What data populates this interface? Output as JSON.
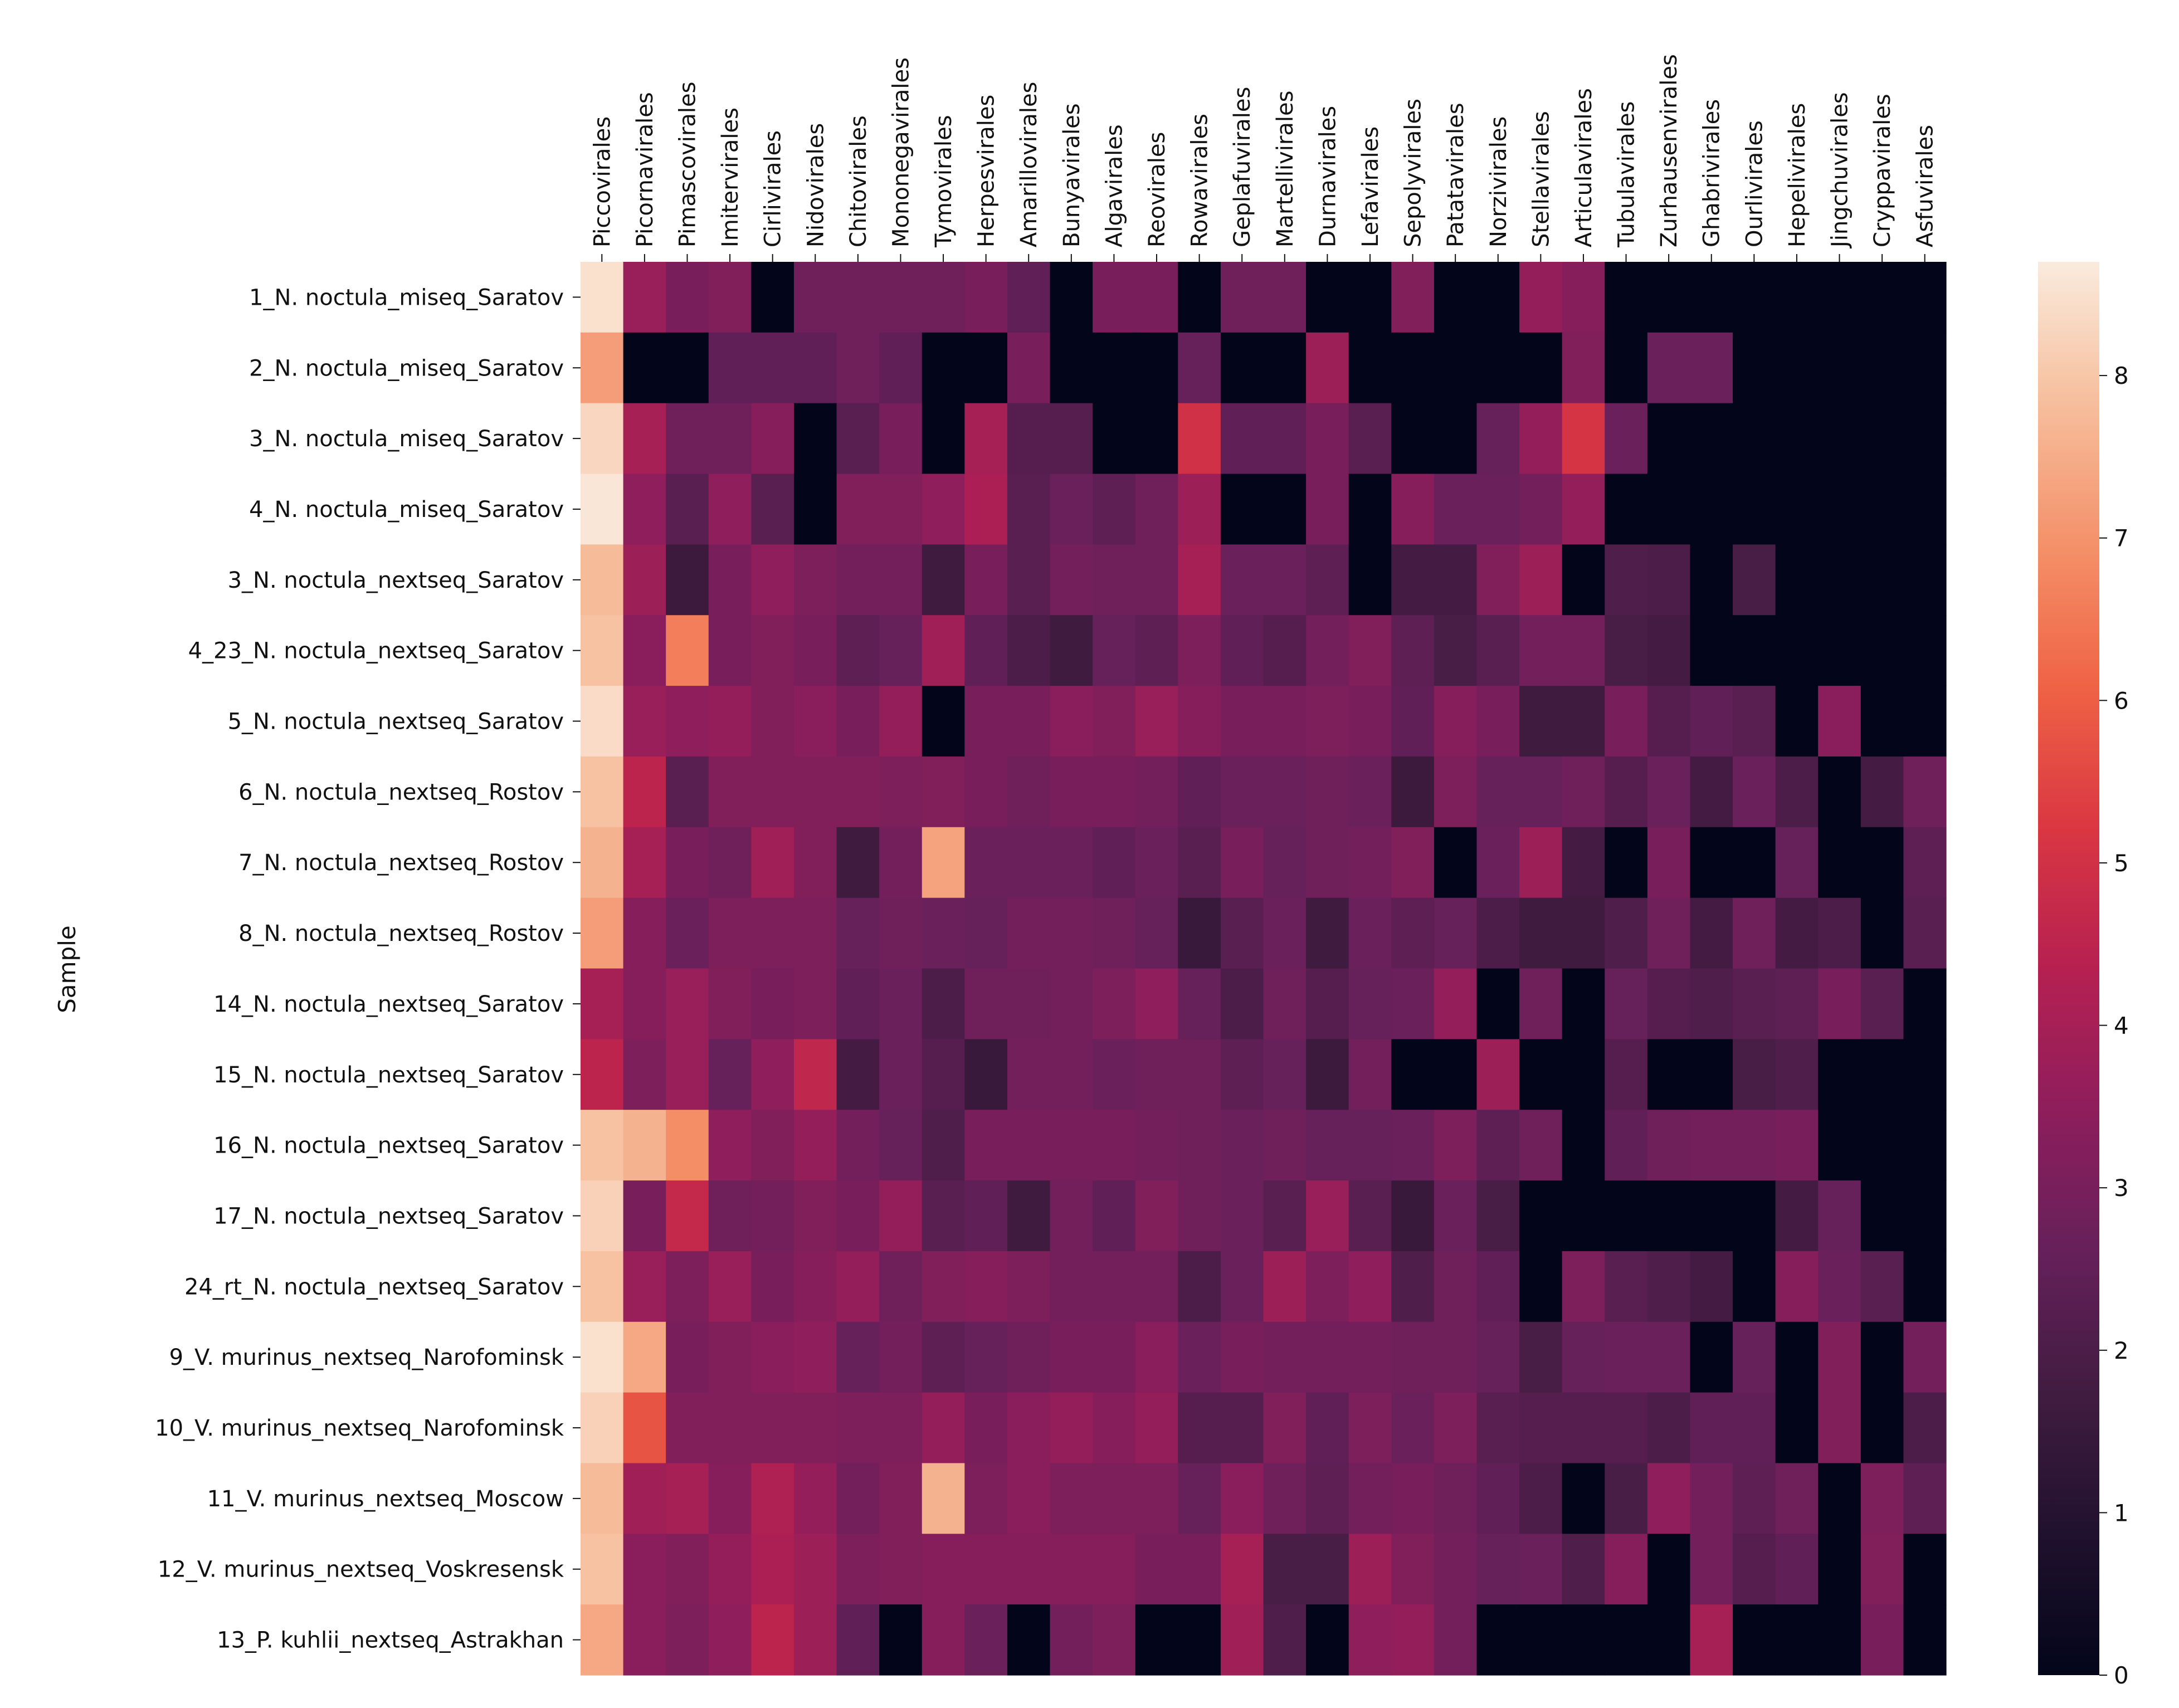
{
  "chart_data": {
    "type": "heatmap",
    "ylabel": "Sample",
    "xlabel": "",
    "x_tick_position": "top",
    "colormap": "rocket",
    "colorbar": {
      "min": 0,
      "max": 8.7,
      "ticks": [
        0,
        1,
        2,
        3,
        4,
        5,
        6,
        7,
        8
      ],
      "placement": "right"
    },
    "columns": [
      "Piccovirales",
      "Picornavirales",
      "Pimascovirales",
      "Imitervirales",
      "Cirlivirales",
      "Nidovirales",
      "Chitovirales",
      "Mononegavirales",
      "Tymovirales",
      "Herpesvirales",
      "Amarillovirales",
      "Bunyavirales",
      "Algavirales",
      "Reovirales",
      "Rowavirales",
      "Geplafuvirales",
      "Martellivirales",
      "Durnavirales",
      "Lefavirales",
      "Sepolyvirales",
      "Patatavirales",
      "Norzivirales",
      "Stellavirales",
      "Articulavirales",
      "Tubulavirales",
      "Zurhausenvirales",
      "Ghabrivirales",
      "Ourlivirales",
      "Hepelivirales",
      "Jingchuvirales",
      "Cryppavirales",
      "Asfuvirales"
    ],
    "rows": [
      "1_N. noctula_miseq_Saratov",
      "2_N. noctula_miseq_Saratov",
      "3_N. noctula_miseq_Saratov",
      "4_N. noctula_miseq_Saratov",
      "3_N. noctula_nextseq_Saratov",
      "4_23_N. noctula_nextseq_Saratov",
      "5_N. noctula_nextseq_Saratov",
      "6_N. noctula_nextseq_Rostov",
      "7_N. noctula_nextseq_Rostov",
      "8_N. noctula_nextseq_Rostov",
      "14_N. noctula_nextseq_Saratov",
      "15_N. noctula_nextseq_Saratov",
      "16_N. noctula_nextseq_Saratov",
      "17_N. noctula_nextseq_Saratov",
      "24_rt_N. noctula_nextseq_Saratov",
      "9_V. murinus_nextseq_Narofominsk",
      "10_V. murinus_nextseq_Narofominsk",
      "11_V. murinus_nextseq_Moscow",
      "12_V. murinus_nextseq_Voskresensk",
      "13_P. kuhlii_nextseq_Astrakhan"
    ],
    "values": [
      [
        8.5,
        3.7,
        3.0,
        3.2,
        0.0,
        2.8,
        2.8,
        2.8,
        2.8,
        3.0,
        2.5,
        0.0,
        3.0,
        3.0,
        0.0,
        2.8,
        2.8,
        0.0,
        0.0,
        3.2,
        0.0,
        0.0,
        3.6,
        3.3,
        0.0,
        0.0,
        0.0,
        0.0,
        0.0,
        0.0,
        0.0,
        0.0
      ],
      [
        7.2,
        0.0,
        0.0,
        2.5,
        2.5,
        2.5,
        2.8,
        2.5,
        0.0,
        0.0,
        3.0,
        0.0,
        0.0,
        0.0,
        2.6,
        0.0,
        0.0,
        3.8,
        0.0,
        0.0,
        0.0,
        0.0,
        0.0,
        3.2,
        0.0,
        2.7,
        2.7,
        0.0,
        0.0,
        0.0,
        0.0,
        0.0
      ],
      [
        8.3,
        4.0,
        2.8,
        2.8,
        3.3,
        0.0,
        2.3,
        3.0,
        0.0,
        4.0,
        2.2,
        2.2,
        0.0,
        0.0,
        5.0,
        2.5,
        2.5,
        3.0,
        2.3,
        0.0,
        0.0,
        2.6,
        3.6,
        5.1,
        2.7,
        0.0,
        0.0,
        0.0,
        0.0,
        0.0,
        0.0,
        0.0
      ],
      [
        8.6,
        3.5,
        2.3,
        3.5,
        2.3,
        0.0,
        3.2,
        3.2,
        3.5,
        4.1,
        2.3,
        2.7,
        2.4,
        2.8,
        3.8,
        0.0,
        0.0,
        3.0,
        0.0,
        3.3,
        2.7,
        2.7,
        2.9,
        3.6,
        0.0,
        0.0,
        0.0,
        0.0,
        0.0,
        0.0,
        0.0,
        0.0
      ],
      [
        7.8,
        3.8,
        1.6,
        3.0,
        3.5,
        3.1,
        2.9,
        2.9,
        1.7,
        3.0,
        2.3,
        2.9,
        2.8,
        2.8,
        4.0,
        2.7,
        2.7,
        2.4,
        0.0,
        1.8,
        1.8,
        3.2,
        3.8,
        0.0,
        2.1,
        2.0,
        0.0,
        1.9,
        0.0,
        0.0,
        0.0,
        0.0
      ],
      [
        7.9,
        3.4,
        6.6,
        3.0,
        3.2,
        3.0,
        2.4,
        2.6,
        3.9,
        2.5,
        2.0,
        1.7,
        2.6,
        2.4,
        3.1,
        2.5,
        2.2,
        2.9,
        3.2,
        2.4,
        1.9,
        2.3,
        2.9,
        2.9,
        1.9,
        1.8,
        0.0,
        0.0,
        0.0,
        0.0,
        0.0,
        0.0
      ],
      [
        8.4,
        3.7,
        3.5,
        3.6,
        3.2,
        3.4,
        3.0,
        3.6,
        0.0,
        3.0,
        3.0,
        3.4,
        3.2,
        3.7,
        3.3,
        3.0,
        3.0,
        3.1,
        3.0,
        2.5,
        3.3,
        3.0,
        1.7,
        1.7,
        3.0,
        2.2,
        2.5,
        2.3,
        0.0,
        3.4,
        0.0,
        0.0
      ],
      [
        7.9,
        4.5,
        2.3,
        3.2,
        3.2,
        3.2,
        3.2,
        3.1,
        3.2,
        3.0,
        2.8,
        3.0,
        3.0,
        2.9,
        2.5,
        2.7,
        2.7,
        2.8,
        2.7,
        1.6,
        3.1,
        2.6,
        2.6,
        2.8,
        2.2,
        2.7,
        1.8,
        2.7,
        2.0,
        0.0,
        1.8,
        2.8
      ],
      [
        7.6,
        4.0,
        3.0,
        2.8,
        3.9,
        3.2,
        1.7,
        2.9,
        7.3,
        2.7,
        2.7,
        2.7,
        2.5,
        2.7,
        2.3,
        3.0,
        2.6,
        2.8,
        2.9,
        3.2,
        0.0,
        2.7,
        3.8,
        1.8,
        0.0,
        3.0,
        0.0,
        0.0,
        2.6,
        0.0,
        0.0,
        2.4
      ],
      [
        7.2,
        3.3,
        2.7,
        3.1,
        3.1,
        3.1,
        2.6,
        2.8,
        2.7,
        2.6,
        2.9,
        2.9,
        2.8,
        2.6,
        1.5,
        2.3,
        2.7,
        1.7,
        2.7,
        2.4,
        2.6,
        2.0,
        1.7,
        1.7,
        2.1,
        2.8,
        1.8,
        2.8,
        1.8,
        2.0,
        0.0,
        2.3
      ],
      [
        4.0,
        3.3,
        3.7,
        3.2,
        3.0,
        3.1,
        2.5,
        2.7,
        2.0,
        2.8,
        2.8,
        2.9,
        3.1,
        3.5,
        2.6,
        2.0,
        2.8,
        2.2,
        2.6,
        2.7,
        3.6,
        0.0,
        2.8,
        0.0,
        2.6,
        2.2,
        2.1,
        2.3,
        2.4,
        3.0,
        2.3,
        0.0
      ],
      [
        4.5,
        3.1,
        3.7,
        2.6,
        3.5,
        4.6,
        1.8,
        2.7,
        2.2,
        1.5,
        2.9,
        2.9,
        2.7,
        2.8,
        2.8,
        2.4,
        2.6,
        1.6,
        2.9,
        0.0,
        0.0,
        3.8,
        0.0,
        0.0,
        2.2,
        0.0,
        0.0,
        1.9,
        2.1,
        0.0,
        0.0,
        0.0
      ],
      [
        7.9,
        7.6,
        6.9,
        3.5,
        3.2,
        3.6,
        2.9,
        2.6,
        2.1,
        3.0,
        3.0,
        3.0,
        3.0,
        2.9,
        2.8,
        2.7,
        2.8,
        2.6,
        2.6,
        2.7,
        3.1,
        2.4,
        2.8,
        0.0,
        2.5,
        2.8,
        2.9,
        2.9,
        3.0,
        0.0,
        0.0,
        0.0
      ],
      [
        8.2,
        3.0,
        4.7,
        2.8,
        2.9,
        3.2,
        3.0,
        3.6,
        2.3,
        2.5,
        1.7,
        2.9,
        2.5,
        3.2,
        2.8,
        2.7,
        2.3,
        3.7,
        2.3,
        1.5,
        2.7,
        1.9,
        0.0,
        0.0,
        0.0,
        0.0,
        0.0,
        0.0,
        1.8,
        2.6,
        0.0,
        0.0
      ],
      [
        7.9,
        3.7,
        3.1,
        3.7,
        3.0,
        3.3,
        3.6,
        2.8,
        3.2,
        3.3,
        3.1,
        2.9,
        2.9,
        2.9,
        2.0,
        2.7,
        3.8,
        3.1,
        3.5,
        2.1,
        2.8,
        2.5,
        0.0,
        3.1,
        2.3,
        2.1,
        1.8,
        0.0,
        3.3,
        2.7,
        2.3,
        0.0
      ],
      [
        8.5,
        7.4,
        3.0,
        3.2,
        3.4,
        3.5,
        2.6,
        2.9,
        2.4,
        2.6,
        2.8,
        3.0,
        3.0,
        3.4,
        2.7,
        3.0,
        2.9,
        2.9,
        2.9,
        2.8,
        2.8,
        2.6,
        1.9,
        2.6,
        2.7,
        2.7,
        0.0,
        2.6,
        0.0,
        3.2,
        0.0,
        2.9
      ],
      [
        8.2,
        5.8,
        3.2,
        3.2,
        3.2,
        3.2,
        3.1,
        3.1,
        3.6,
        3.0,
        3.4,
        3.6,
        3.3,
        3.6,
        2.2,
        2.2,
        3.2,
        2.5,
        3.1,
        2.7,
        3.1,
        2.3,
        2.2,
        2.2,
        2.2,
        2.0,
        2.5,
        2.5,
        0.0,
        3.2,
        0.0,
        2.0
      ],
      [
        7.8,
        3.9,
        4.0,
        3.3,
        4.2,
        3.6,
        2.9,
        3.2,
        7.6,
        3.1,
        3.4,
        3.1,
        3.1,
        3.1,
        2.6,
        3.4,
        2.8,
        2.4,
        2.9,
        3.0,
        2.8,
        2.5,
        2.0,
        0.0,
        1.9,
        3.5,
        2.9,
        2.4,
        2.8,
        0.0,
        3.1,
        2.4
      ],
      [
        7.9,
        3.4,
        3.2,
        3.6,
        4.1,
        3.8,
        3.1,
        3.2,
        3.3,
        3.3,
        3.3,
        3.3,
        3.3,
        3.0,
        3.0,
        4.0,
        1.9,
        1.9,
        3.8,
        3.2,
        2.9,
        2.6,
        2.7,
        2.1,
        3.3,
        0.0,
        2.9,
        2.2,
        2.5,
        0.0,
        3.2,
        0.0
      ],
      [
        7.4,
        3.4,
        3.1,
        3.5,
        4.5,
        3.8,
        2.5,
        0.0,
        3.3,
        2.7,
        0.0,
        2.9,
        3.1,
        0.0,
        0.0,
        3.9,
        2.1,
        0.0,
        3.5,
        3.6,
        2.9,
        0.0,
        0.0,
        0.0,
        0.0,
        0.0,
        4.0,
        0.0,
        0.0,
        0.0,
        3.0,
        0.0
      ]
    ]
  }
}
